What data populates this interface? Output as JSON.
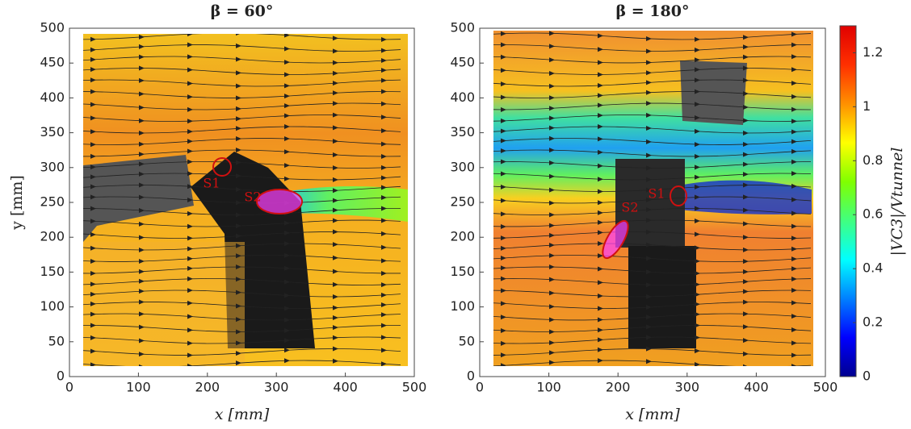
{
  "chart_data": [
    {
      "type": "field",
      "title": "β = 60°",
      "xlabel": "x [mm]",
      "ylabel": "y [mm]",
      "xlim": [
        0,
        500
      ],
      "ylim": [
        0,
        500
      ],
      "xticks": [
        0,
        100,
        200,
        300,
        400,
        500
      ],
      "yticks": [
        0,
        50,
        100,
        150,
        200,
        250,
        300,
        350,
        400,
        450,
        500
      ],
      "annotations": [
        "S1",
        "S2"
      ]
    },
    {
      "type": "field",
      "title": "β = 180°",
      "xlabel": "x [mm]",
      "xlim": [
        0,
        500
      ],
      "ylim": [
        0,
        500
      ],
      "xticks": [
        0,
        100,
        200,
        300,
        400,
        500
      ],
      "yticks": [
        0,
        50,
        100,
        150,
        200,
        250,
        300,
        350,
        400,
        450,
        500
      ],
      "annotations": [
        "S1",
        "S2"
      ]
    }
  ],
  "colorbar": {
    "label": "|VC3|/Vtunnel",
    "ylim": [
      0,
      1.3
    ],
    "yticks": [
      0,
      0.2,
      0.4,
      0.6,
      0.8,
      1,
      1.2
    ],
    "colormap": [
      "#00008f",
      "#0000ff",
      "#0080ff",
      "#00ffff",
      "#40ff80",
      "#80ff00",
      "#ffff00",
      "#ff9000",
      "#ff3000",
      "#e00000"
    ]
  }
}
